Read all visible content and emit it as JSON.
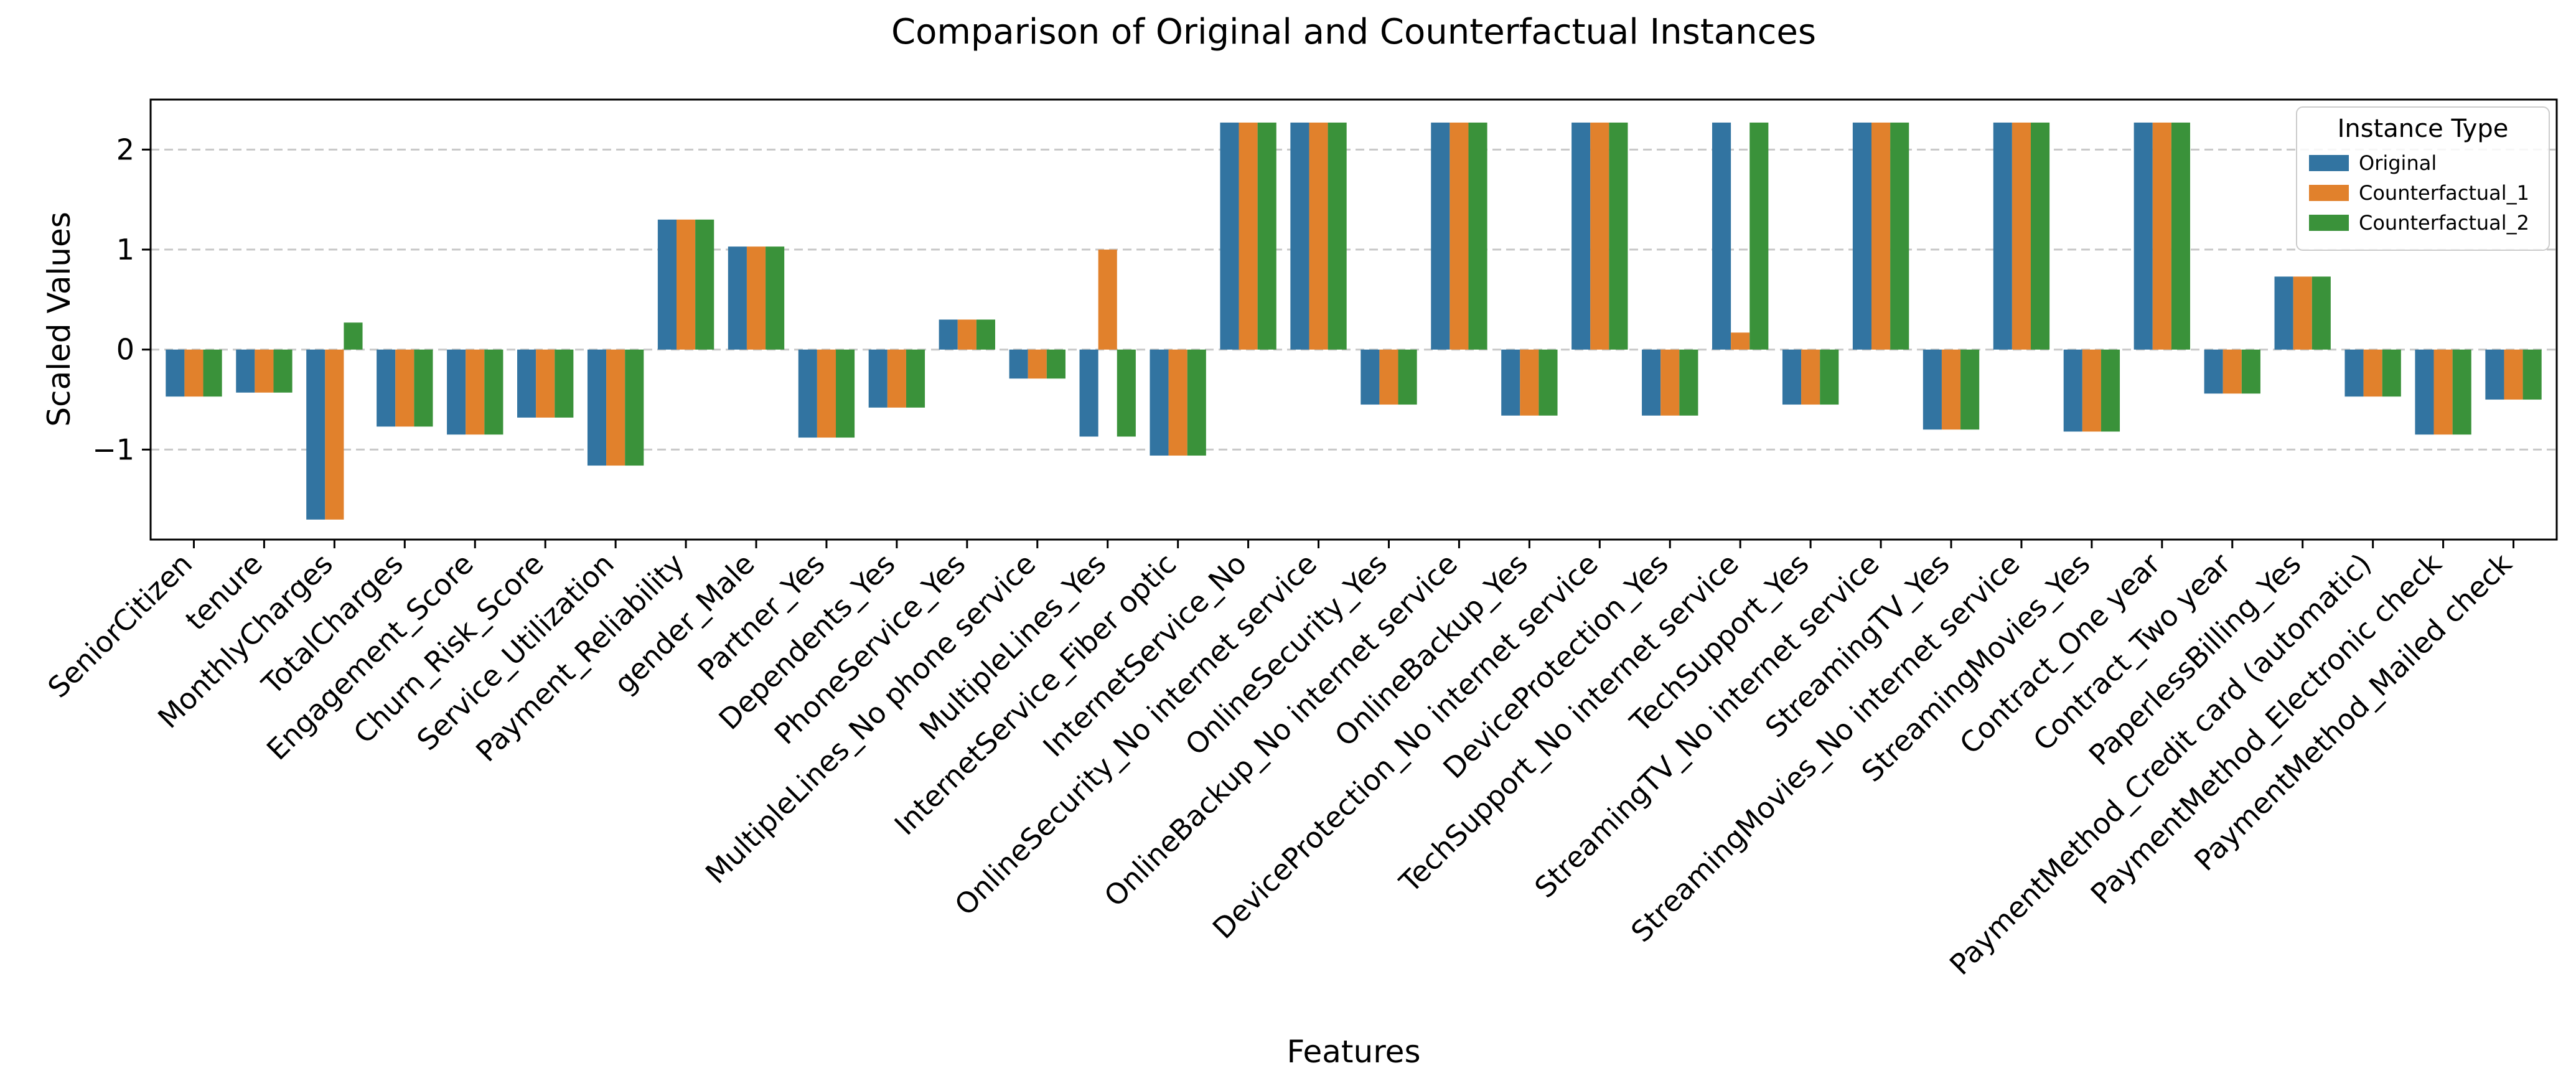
{
  "chart_data": {
    "type": "bar",
    "title": "Comparison of Original and Counterfactual Instances",
    "xlabel": "Features",
    "ylabel": "Scaled Values",
    "ylim": [
      -1.9,
      2.5
    ],
    "yticks": [
      -1,
      0,
      1,
      2
    ],
    "ytick_labels": [
      "−1",
      "0",
      "1",
      "2"
    ],
    "grid": "horizontal-dashed",
    "legend": {
      "title": "Instance Type",
      "position": "top-right"
    },
    "categories": [
      "SeniorCitizen",
      "tenure",
      "MonthlyCharges",
      "TotalCharges",
      "Engagement_Score",
      "Churn_Risk_Score",
      "Service_Utilization",
      "Payment_Reliability",
      "gender_Male",
      "Partner_Yes",
      "Dependents_Yes",
      "PhoneService_Yes",
      "MultipleLines_No phone service",
      "MultipleLines_Yes",
      "InternetService_Fiber optic",
      "InternetService_No",
      "OnlineSecurity_No internet service",
      "OnlineSecurity_Yes",
      "OnlineBackup_No internet service",
      "OnlineBackup_Yes",
      "DeviceProtection_No internet service",
      "DeviceProtection_Yes",
      "TechSupport_No internet service",
      "TechSupport_Yes",
      "StreamingTV_No internet service",
      "StreamingTV_Yes",
      "StreamingMovies_No internet service",
      "StreamingMovies_Yes",
      "Contract_One year",
      "Contract_Two year",
      "PaperlessBilling_Yes",
      "PaymentMethod_Credit card (automatic)",
      "PaymentMethod_Electronic check",
      "PaymentMethod_Mailed check"
    ],
    "series": [
      {
        "name": "Original",
        "color": "#3274a1",
        "values": [
          -0.47,
          -0.43,
          -1.7,
          -0.77,
          -0.85,
          -0.68,
          -1.16,
          1.3,
          1.03,
          -0.88,
          -0.58,
          0.3,
          -0.29,
          -0.87,
          -1.06,
          2.27,
          2.27,
          -0.55,
          2.27,
          -0.66,
          2.27,
          -0.66,
          2.27,
          -0.55,
          2.27,
          -0.8,
          2.27,
          -0.82,
          2.27,
          -0.44,
          0.73,
          -0.47,
          -0.85,
          -0.5
        ]
      },
      {
        "name": "Counterfactual_1",
        "color": "#e1812c",
        "values": [
          -0.47,
          -0.43,
          -1.7,
          -0.77,
          -0.85,
          -0.68,
          -1.16,
          1.3,
          1.03,
          -0.88,
          -0.58,
          0.3,
          -0.29,
          1.0,
          -1.06,
          2.27,
          2.27,
          -0.55,
          2.27,
          -0.66,
          2.27,
          -0.66,
          0.17,
          -0.55,
          2.27,
          -0.8,
          2.27,
          -0.82,
          2.27,
          -0.44,
          0.73,
          -0.47,
          -0.85,
          -0.5
        ]
      },
      {
        "name": "Counterfactual_2",
        "color": "#3a923a",
        "values": [
          -0.47,
          -0.43,
          0.27,
          -0.77,
          -0.85,
          -0.68,
          -1.16,
          1.3,
          1.03,
          -0.88,
          -0.58,
          0.3,
          -0.29,
          -0.87,
          -1.06,
          2.27,
          2.27,
          -0.55,
          2.27,
          -0.66,
          2.27,
          -0.66,
          2.27,
          -0.55,
          2.27,
          -0.8,
          2.27,
          -0.82,
          2.27,
          -0.44,
          0.73,
          -0.47,
          -0.85,
          -0.5
        ]
      }
    ]
  }
}
